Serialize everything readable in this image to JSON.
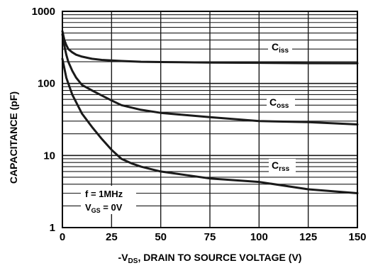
{
  "chart_data": {
    "type": "line",
    "xlabel_parts": [
      "-V",
      "DS",
      ", DRAIN TO SOURCE VOLTAGE (V)"
    ],
    "ylabel": "CAPACITANCE (pF)",
    "xlim": [
      0,
      150
    ],
    "ylim": [
      1,
      1000
    ],
    "y_scale": "log",
    "grid": true,
    "x_ticks": [
      0,
      25,
      50,
      75,
      100,
      125,
      150
    ],
    "x_tick_labels": [
      "0",
      "25",
      "50",
      "75",
      "100",
      "125",
      "150"
    ],
    "y_ticks": [
      1,
      10,
      100,
      1000
    ],
    "y_tick_labels": [
      "1",
      "10",
      "100",
      "1000"
    ],
    "series": [
      {
        "name_parts": [
          "C",
          "iss"
        ],
        "x": [
          0,
          1,
          2,
          3,
          5,
          7,
          10,
          15,
          20,
          30,
          40,
          50,
          75,
          100,
          125,
          150
        ],
        "y": [
          530,
          400,
          340,
          300,
          270,
          250,
          235,
          220,
          212,
          205,
          200,
          198,
          195,
          193,
          191,
          190
        ]
      },
      {
        "name_parts": [
          "C",
          "oss"
        ],
        "x": [
          0,
          1,
          2,
          3,
          5,
          7,
          10,
          15,
          20,
          25,
          30,
          40,
          50,
          75,
          100,
          125,
          150
        ],
        "y": [
          480,
          330,
          250,
          200,
          150,
          120,
          95,
          80,
          68,
          58,
          50,
          43,
          39,
          34,
          30,
          29,
          27
        ]
      },
      {
        "name_parts": [
          "C",
          "rss"
        ],
        "x": [
          0,
          2,
          5,
          10,
          15,
          20,
          25,
          30,
          35,
          40,
          50,
          75,
          100,
          125,
          150
        ],
        "y": [
          220,
          120,
          70,
          38,
          25,
          17,
          12,
          9,
          7.8,
          7,
          6,
          4.8,
          4.3,
          3.4,
          3
        ]
      }
    ],
    "notes": [
      {
        "parts": [
          "f = 1MHz"
        ]
      },
      {
        "parts": [
          "V",
          "GS",
          " = 0V"
        ]
      }
    ]
  },
  "colors": {
    "line": "#1a1a1a",
    "grid": "#1a1a1a",
    "background": "#ffffff"
  }
}
